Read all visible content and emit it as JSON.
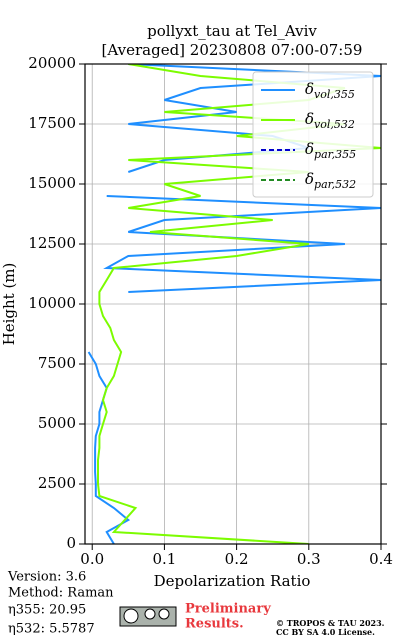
{
  "chart_data": {
    "type": "line",
    "title": [
      "pollyxt_tau at Tel_Aviv",
      "[Averaged] 20230808 07:00-07:59"
    ],
    "xlabel": "Depolarization Ratio",
    "ylabel": "Height (m)",
    "xlim": [
      -0.01,
      0.4
    ],
    "ylim": [
      0,
      20000
    ],
    "xticks": [
      {
        "value": 0,
        "label": "0.0"
      },
      0.1,
      0.2,
      0.3,
      0.4
    ],
    "yticks": [
      0,
      2500,
      5000,
      7500,
      10000,
      12500,
      15000,
      17500,
      20000
    ],
    "grid": true,
    "legend": "upper right",
    "y": [
      0,
      500,
      1000,
      1500,
      2000,
      2500,
      3000,
      3500,
      4000,
      4500,
      5000,
      5500,
      6000,
      6500,
      7000,
      7500,
      8000,
      8500,
      9000,
      9500,
      10000,
      10500,
      11000,
      11500,
      12000,
      12500,
      13000,
      13500,
      14000,
      14500,
      15000,
      15500,
      16000,
      16500,
      17000,
      17500,
      18000,
      18500,
      19000,
      19500,
      20000
    ],
    "series": [
      {
        "name": "δvol,355",
        "color": "#1f8fff",
        "dash": "solid",
        "values": [
          0.03,
          0.02,
          0.05,
          0.03,
          0.005,
          0.005,
          0.004,
          0.004,
          0.004,
          0.005,
          0.01,
          0.01,
          0.015,
          0.02,
          0.01,
          0.005,
          -0.005,
          null,
          null,
          null,
          null,
          0.05,
          0.4,
          0.02,
          0.05,
          0.35,
          0.05,
          0.1,
          0.4,
          0.02,
          null,
          0.05,
          0.1,
          0.3,
          0.25,
          0.05,
          0.2,
          0.1,
          0.15,
          0.4,
          0.05
        ]
      },
      {
        "name": "δvol,532",
        "color": "#7cfc00",
        "dash": "solid",
        "values": [
          0.3,
          0.03,
          0.045,
          0.06,
          0.01,
          0.008,
          0.008,
          0.008,
          0.01,
          0.01,
          0.015,
          0.02,
          0.015,
          0.02,
          0.03,
          0.035,
          0.04,
          0.03,
          0.025,
          0.015,
          0.01,
          0.01,
          0.02,
          0.03,
          0.2,
          0.3,
          0.08,
          0.25,
          0.05,
          0.15,
          0.1,
          0.3,
          0.05,
          0.4,
          0.2,
          0.35,
          0.1,
          0.3,
          0.35,
          0.15,
          0.05
        ]
      },
      {
        "name": "δpar,355",
        "color": "#0000cc",
        "dash": "dashed",
        "values": [
          null,
          null,
          null,
          null,
          null,
          null,
          null,
          null,
          null,
          null,
          null,
          null,
          null,
          null,
          null,
          null,
          null,
          null,
          null,
          null,
          null,
          null,
          null,
          null,
          null,
          null,
          null,
          null,
          null,
          null,
          null,
          null,
          null,
          null,
          null,
          null,
          null,
          null,
          null,
          null,
          null
        ]
      },
      {
        "name": "δpar,532",
        "color": "#228b22",
        "dash": "dashed",
        "values": [
          null,
          null,
          null,
          null,
          null,
          null,
          null,
          null,
          null,
          null,
          null,
          null,
          null,
          null,
          null,
          null,
          null,
          null,
          null,
          null,
          null,
          null,
          null,
          null,
          null,
          null,
          null,
          null,
          null,
          null,
          null,
          null,
          null,
          null,
          null,
          null,
          null,
          null,
          null,
          null,
          null
        ]
      }
    ]
  },
  "footer": {
    "version": "Version: 3.6",
    "method": "Method: Raman",
    "eta355": "η355:  20.95",
    "eta532": "η532: 5.5787",
    "preliminary": [
      "Preliminary",
      "Results."
    ],
    "copyright": [
      "© TROPOS & TAU 2023.",
      "CC BY SA 4.0 License."
    ]
  }
}
